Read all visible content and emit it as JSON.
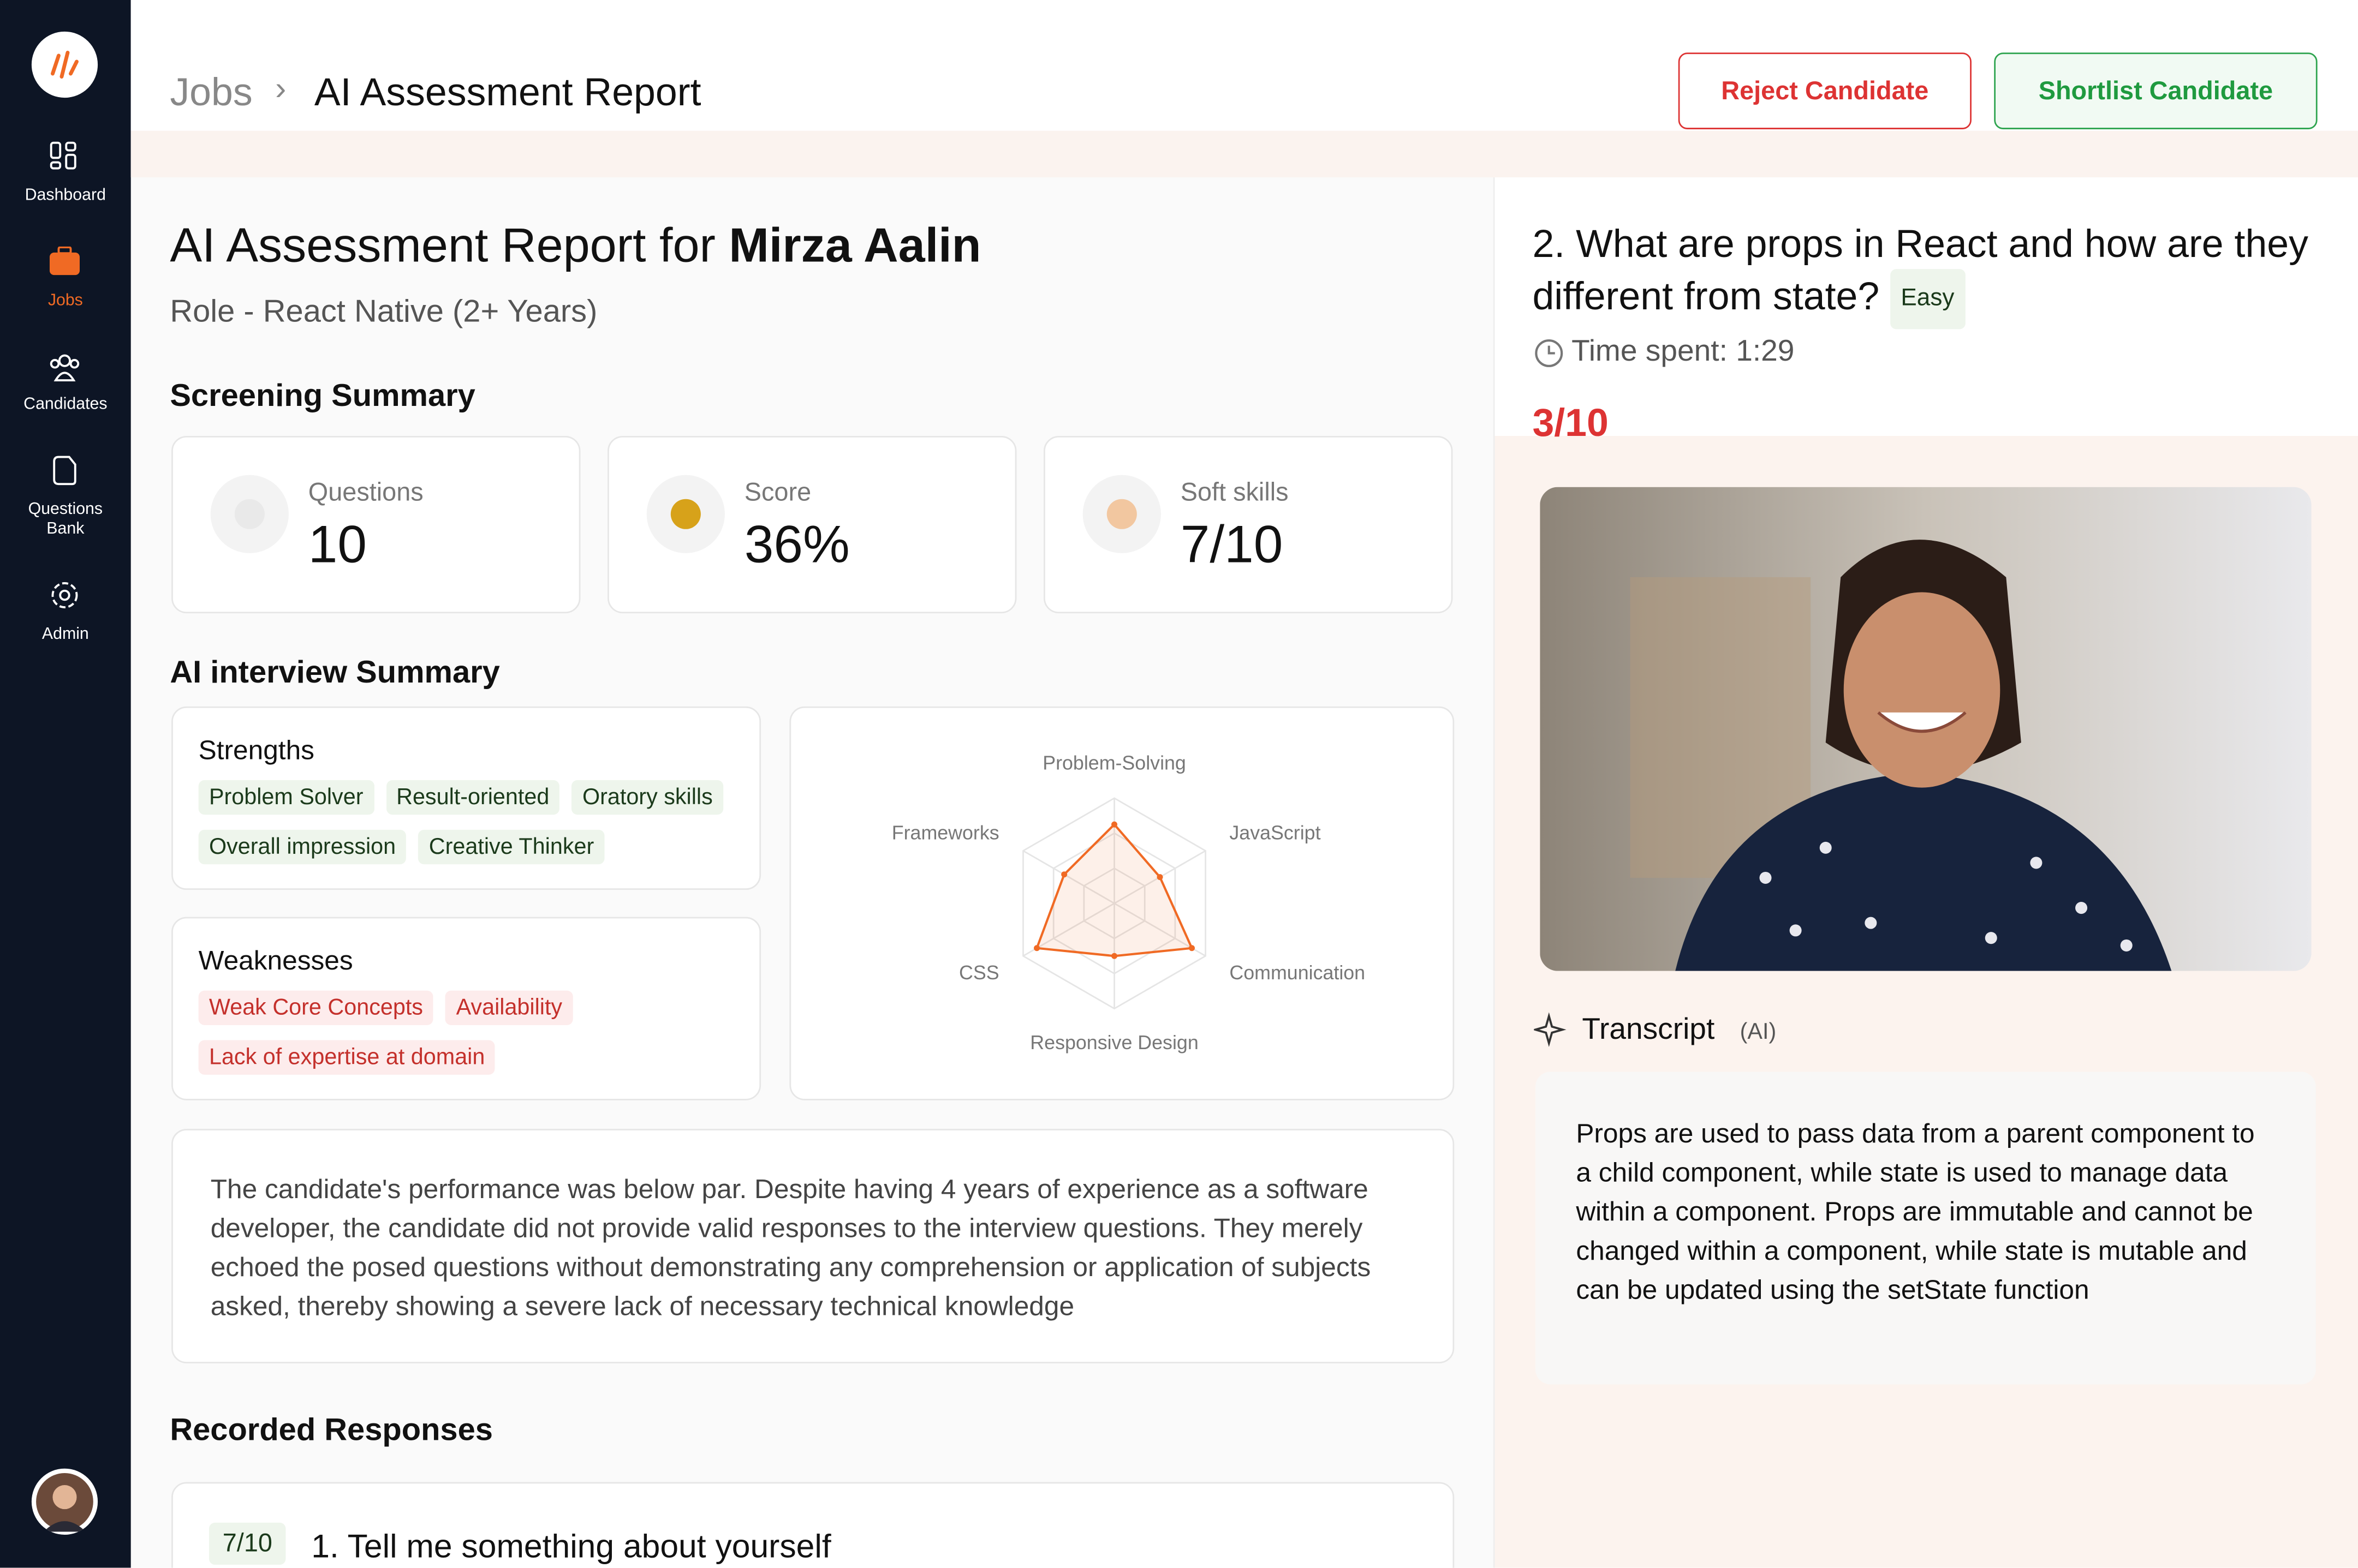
{
  "sidebar": {
    "nav": [
      "Dashboard",
      "Jobs",
      "Candidates",
      "Questions Bank",
      "Admin"
    ]
  },
  "header": {
    "breadcrumb": [
      "Jobs",
      "AI Assessment Report"
    ],
    "actions": [
      "Reject Candidate",
      "Shortlist Candidate"
    ]
  },
  "report": {
    "title_prefix": "AI Assessment Report for",
    "candidate": "Mirza Aalin",
    "role": "Role - React Native (2+ Years)"
  },
  "screening": {
    "heading": "Screening Summary",
    "stats": [
      {
        "label": "Questions",
        "value": "10"
      },
      {
        "label": "Score",
        "value": "36%"
      },
      {
        "label": "Soft skills",
        "value": "7/10"
      }
    ]
  },
  "interview": {
    "heading": "AI interview Summary",
    "strengths": {
      "title": "Strengths",
      "tags": [
        "Problem Solver",
        "Result-oriented",
        "Oratory skills",
        "Overall impression",
        "Creative Thinker"
      ]
    },
    "weaknesses": {
      "title": "Weaknesses",
      "tags": [
        "Weak Core Concepts",
        "Availability",
        "Lack of expertise at domain"
      ]
    },
    "summary": "The candidate's performance was below par. Despite having 4 years of experience as a software developer, the candidate did not provide valid responses to the interview questions. They merely echoed the posed questions without demonstrating any comprehension or application of subjects asked, thereby showing a severe lack of necessary technical knowledge"
  },
  "chart_data": {
    "type": "radar",
    "categories": [
      "Problem-Solving",
      "JavaScript",
      "Communication",
      "Responsive Design",
      "CSS",
      "Frameworks"
    ],
    "values": [
      7.5,
      5,
      8.5,
      5,
      8.5,
      5.5
    ],
    "rlim": [
      0,
      10
    ],
    "color": "#f06a24",
    "grid": true
  },
  "recorded": {
    "heading": "Recorded Responses",
    "items": [
      {
        "score": "7/10",
        "question": "1. Tell me something about yourself"
      }
    ]
  },
  "question": {
    "title": "2. What are props in React and how are they different from state?",
    "difficulty": "Easy",
    "time": "Time spent: 1:29",
    "score": "3/10",
    "transcript_label": "Transcript",
    "transcript_tag": "(AI)",
    "transcript": "Props are used to pass data from a parent component to a child component, while state is used to manage data within a component. Props are immutable and cannot be changed within a component, while state is mutable and can be updated using the setState function"
  }
}
